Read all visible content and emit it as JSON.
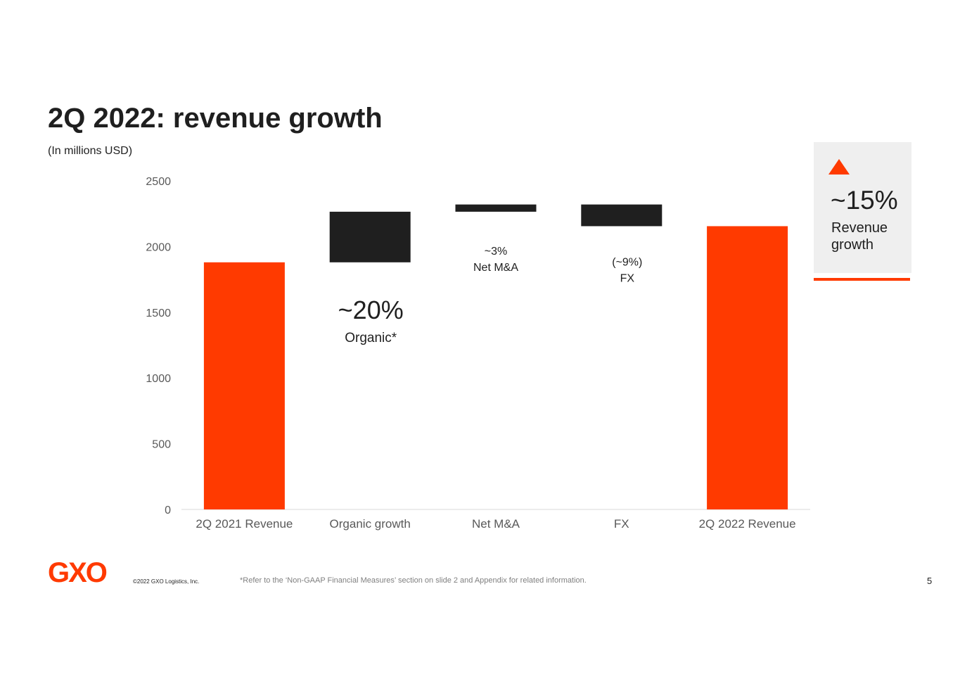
{
  "slide": {
    "title": "2Q 2022: revenue growth",
    "subtitle": "(In millions USD)",
    "page_number": "5"
  },
  "colors": {
    "accent": "#ff3a00",
    "dark": "#1f1f1f",
    "callout_bg": "#efefef",
    "axis_text": "#595959"
  },
  "chart_data": {
    "type": "bar",
    "subtype": "waterfall",
    "categories": [
      "2Q 2021 Revenue",
      "Organic growth",
      "Net M&A",
      "FX",
      "2Q 2022 Revenue"
    ],
    "bars": [
      {
        "category": "2Q 2021 Revenue",
        "kind": "total",
        "start": 0,
        "end": 1880,
        "color": "#ff3a00"
      },
      {
        "category": "Organic growth",
        "kind": "delta",
        "start": 1880,
        "end": 2265,
        "color": "#1f1f1f"
      },
      {
        "category": "Net M&A",
        "kind": "delta",
        "start": 2265,
        "end": 2320,
        "color": "#1f1f1f"
      },
      {
        "category": "FX",
        "kind": "delta",
        "start": 2320,
        "end": 2155,
        "color": "#1f1f1f"
      },
      {
        "category": "2Q 2022 Revenue",
        "kind": "total",
        "start": 0,
        "end": 2155,
        "color": "#ff3a00"
      }
    ],
    "yticks": [
      "0",
      "500",
      "1000",
      "1500",
      "2000",
      "2500"
    ],
    "ylim": [
      0,
      2500
    ],
    "annotations": [
      {
        "category": "Organic growth",
        "value": "~20%",
        "label": "Organic*"
      },
      {
        "category": "Net M&A",
        "value": "~3%",
        "label": "Net M&A"
      },
      {
        "category": "FX",
        "value": "(~9%)",
        "label": "FX"
      }
    ],
    "grid": false,
    "legend": "none"
  },
  "callout": {
    "icon": "up-triangle-icon",
    "value": "~15%",
    "label": "Revenue growth"
  },
  "footer": {
    "logo": "GXO",
    "copyright": "©2022 GXO Logistics, Inc.",
    "footnote": "*Refer to the ‘Non-GAAP Financial Measures’ section on slide 2 and Appendix for related information."
  }
}
